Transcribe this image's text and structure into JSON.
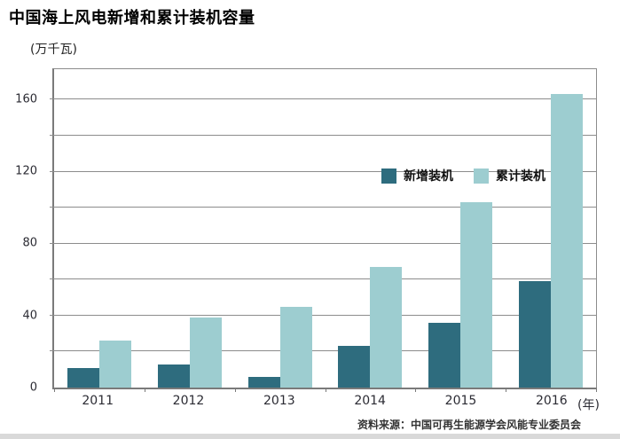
{
  "page": {
    "title": "中国海上风电新增和累计装机容量",
    "unit_label": "(万千瓦)",
    "x_axis_suffix": "(年)",
    "source": "资料来源：中国可再生能源学会风能专业委员会"
  },
  "colors": {
    "new_series": "#2E6C7E",
    "cumulative_series": "#9DCDD0",
    "gridline": "#8C8C8C",
    "axis": "#7A7A7A"
  },
  "chart_data": {
    "type": "bar",
    "title": "中国海上风电新增和累计装机容量",
    "categories": [
      "2011",
      "2012",
      "2013",
      "2014",
      "2015",
      "2016"
    ],
    "series": [
      {
        "name": "新增装机",
        "color": "#2E6C7E",
        "values": [
          11,
          13,
          6,
          23,
          36,
          59
        ]
      },
      {
        "name": "累计装机",
        "color": "#9DCDD0",
        "values": [
          26,
          39,
          45,
          67,
          103,
          163
        ]
      }
    ],
    "ylabel": "(万千瓦)",
    "xlabel": "(年)",
    "ylim": [
      0,
      177
    ],
    "grid_step": 20,
    "label_step": 40,
    "grid": true,
    "legend_position": "top-center-inside"
  }
}
